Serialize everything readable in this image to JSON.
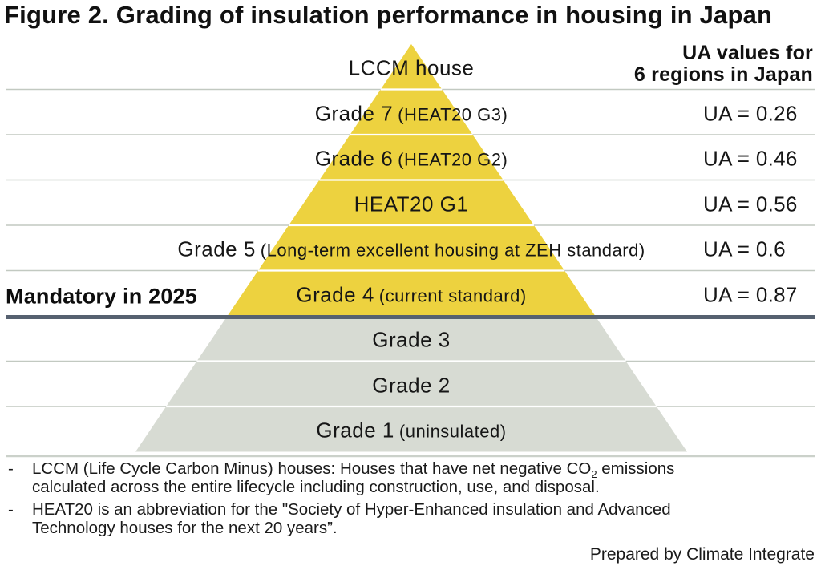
{
  "title": "Figure 2. Grading of insulation performance in housing in Japan",
  "ua_header": {
    "line1": "UA values for",
    "line2": "6 regions in Japan"
  },
  "levels": [
    {
      "name": "LCCM house",
      "detail": "",
      "ua": "",
      "zone": "yellow",
      "annotation": ""
    },
    {
      "name": "Grade 7",
      "detail": "(HEAT20 G3)",
      "ua": "UA = 0.26",
      "zone": "yellow",
      "annotation": ""
    },
    {
      "name": "Grade 6",
      "detail": "(HEAT20 G2)",
      "ua": "UA = 0.46",
      "zone": "yellow",
      "annotation": ""
    },
    {
      "name": "HEAT20 G1",
      "detail": "",
      "ua": "UA = 0.56",
      "zone": "yellow",
      "annotation": ""
    },
    {
      "name": "Grade 5",
      "detail": "(Long-term excellent housing at ZEH standard)",
      "ua": "UA = 0.6",
      "zone": "yellow",
      "annotation": ""
    },
    {
      "name": "Grade 4",
      "detail": "(current standard)",
      "ua": "UA = 0.87",
      "zone": "yellow",
      "annotation": "Mandatory in 2025"
    },
    {
      "name": "Grade 3",
      "detail": "",
      "ua": "",
      "zone": "gray",
      "annotation": ""
    },
    {
      "name": "Grade 2",
      "detail": "",
      "ua": "",
      "zone": "gray",
      "annotation": ""
    },
    {
      "name": "Grade 1",
      "detail": "(uninsulated)",
      "ua": "",
      "zone": "gray",
      "annotation": ""
    }
  ],
  "mandatory_threshold_after_level": "Grade 4",
  "colors": {
    "pyramid_yellow": "#EDD23F",
    "pyramid_gray": "#D7DBD3",
    "thin_line": "#C2C9C1",
    "thick_line": "#566170",
    "baseline": "#CBD1CA",
    "gap_line": "#FFFFFF"
  },
  "footnotes": {
    "bullet": "-",
    "items": [
      {
        "pre": "LCCM (Life Cycle Carbon Minus) houses: Houses that have net negative CO",
        "sub": "2",
        "post": " emissions calculated across the entire lifecycle including construction, use, and disposal."
      },
      {
        "pre": "HEAT20 is an abbreviation for the \"Society of Hyper-Enhanced insulation and Advanced Technology houses for the next 20 years”.",
        "sub": "",
        "post": ""
      }
    ]
  },
  "credit": "Prepared by Climate Integrate"
}
